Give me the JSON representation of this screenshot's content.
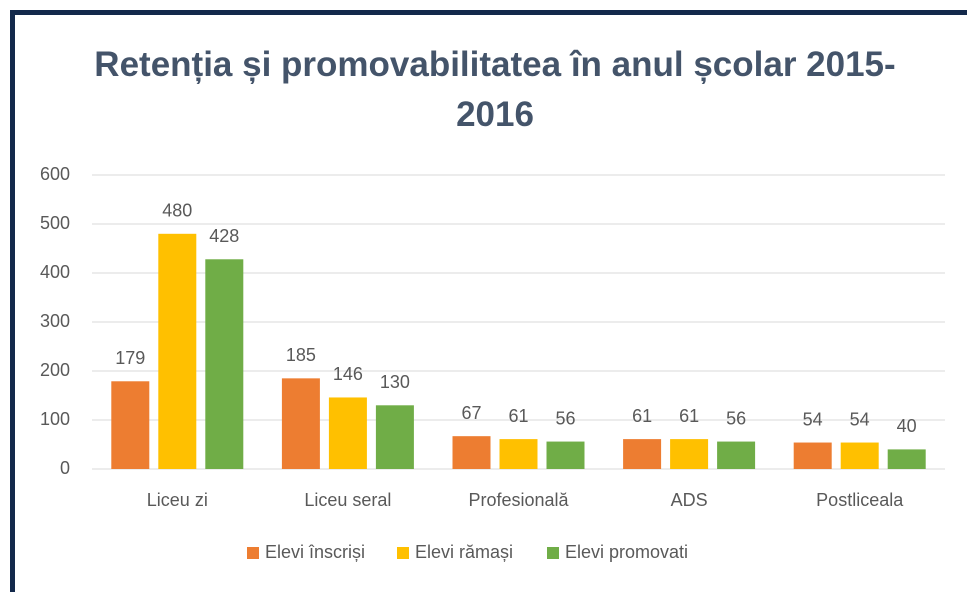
{
  "chart_data": {
    "type": "bar",
    "title": "Retenția și promovabilitatea în anul școlar 2015-2016",
    "categories": [
      "Liceu zi",
      "Liceu seral",
      "Profesională",
      "ADS",
      "Postliceala"
    ],
    "series": [
      {
        "name": "Elevi înscriși",
        "color": "#ed7d31",
        "values": [
          179,
          185,
          67,
          61,
          54
        ]
      },
      {
        "name": "Elevi rămași",
        "color": "#ffc000",
        "values": [
          480,
          146,
          61,
          61,
          54
        ]
      },
      {
        "name": "Elevi promovati",
        "color": "#70ad47",
        "values": [
          428,
          130,
          56,
          56,
          40
        ]
      }
    ],
    "ylim": [
      0,
      600
    ],
    "yticks": [
      0,
      100,
      200,
      300,
      400,
      500,
      600
    ],
    "grid": true,
    "legend": "bottom"
  }
}
